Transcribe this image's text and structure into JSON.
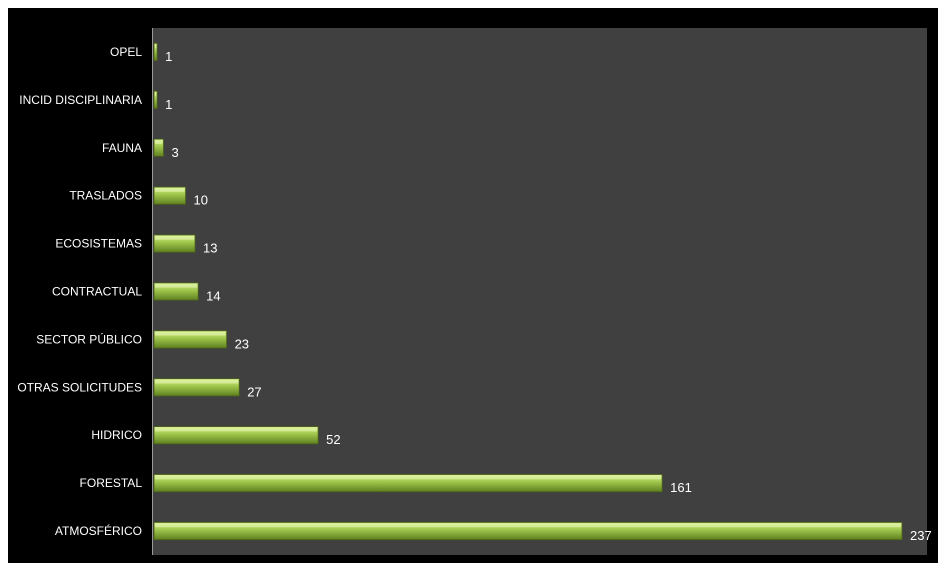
{
  "chart_data": {
    "type": "bar",
    "orientation": "horizontal",
    "categories": [
      "OPEL",
      "INCID DISCIPLINARIA",
      "FAUNA",
      "TRASLADOS",
      "ECOSISTEMAS",
      "CONTRACTUAL",
      "SECTOR PÚBLICO",
      "OTRAS SOLICITUDES",
      "HIDRICO",
      "FORESTAL",
      "ATMOSFÉRICO"
    ],
    "values": [
      1,
      1,
      3,
      10,
      13,
      14,
      23,
      27,
      52,
      161,
      237
    ],
    "data_labels": [
      "1",
      "1",
      "3",
      "10",
      "13",
      "14",
      "23",
      "27",
      "52",
      "161",
      "237"
    ],
    "title": "",
    "xlabel": "",
    "ylabel": "",
    "xlim": [
      0,
      237
    ],
    "grid": false,
    "legend": "none"
  },
  "colors": {
    "frame_background": "#000000",
    "plot_background": "#404040",
    "bar_light": "#d6ef8a",
    "bar_mid": "#9dc44a",
    "bar_dark": "#5f7f20",
    "text": "#ffffff"
  }
}
